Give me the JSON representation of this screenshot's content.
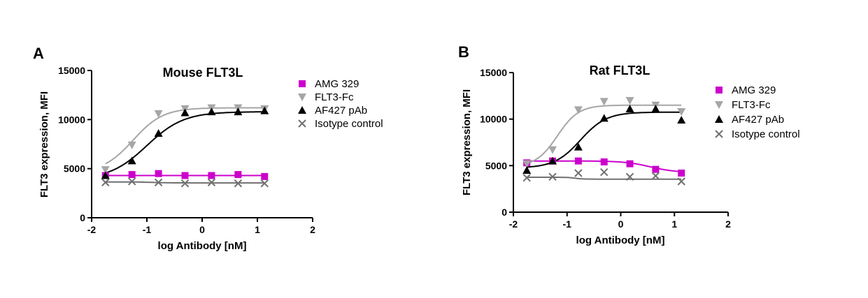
{
  "chart_data": [
    {
      "panel": "A",
      "type": "scatter",
      "title": "Mouse FLT3L",
      "xlabel": "log Antibody [nM]",
      "ylabel": "FLT3 expression, MFI",
      "xlim": [
        -2,
        2
      ],
      "ylim": [
        0,
        15000
      ],
      "xticks": [
        "-2",
        "-1",
        "0",
        "1",
        "2"
      ],
      "yticks": [
        "0",
        "5000",
        "10000",
        "15000"
      ],
      "legend_position": "right",
      "x": [
        -1.75,
        -1.27,
        -0.79,
        -0.31,
        0.17,
        0.65,
        1.13
      ],
      "series": [
        {
          "name": "AMG 329",
          "marker": "square",
          "color": "#cc00cc",
          "values": [
            4300,
            4400,
            4500,
            4300,
            4300,
            4400,
            4200
          ]
        },
        {
          "name": "FLT3-Fc",
          "marker": "triangle-down",
          "color": "#a6a6a6",
          "values": [
            4900,
            7400,
            10600,
            11100,
            11200,
            11200,
            11100
          ]
        },
        {
          "name": "AF427 pAb",
          "marker": "triangle-up",
          "color": "#000000",
          "values": [
            4300,
            5800,
            8600,
            10700,
            10800,
            10800,
            10900
          ]
        },
        {
          "name": "Isotype control",
          "marker": "x",
          "color": "#707070",
          "values": [
            3600,
            3700,
            3600,
            3500,
            3600,
            3500,
            3500
          ]
        }
      ]
    },
    {
      "panel": "B",
      "type": "scatter",
      "title": "Rat FLT3L",
      "xlabel": "log Antibody [nM]",
      "ylabel": "FLT3 expression, MFI",
      "xlim": [
        -2,
        2
      ],
      "ylim": [
        0,
        15000
      ],
      "xticks": [
        "-2",
        "-1",
        "0",
        "1",
        "2"
      ],
      "yticks": [
        "0",
        "5000",
        "10000",
        "15000"
      ],
      "legend_position": "right",
      "x": [
        -1.75,
        -1.27,
        -0.79,
        -0.31,
        0.17,
        0.65,
        1.13
      ],
      "series": [
        {
          "name": "AMG 329",
          "marker": "square",
          "color": "#cc00cc",
          "values": [
            5300,
            5500,
            5500,
            5400,
            5200,
            4600,
            4200
          ]
        },
        {
          "name": "FLT3-Fc",
          "marker": "triangle-down",
          "color": "#a6a6a6",
          "values": [
            5200,
            6700,
            11000,
            11900,
            12000,
            11500,
            10800
          ]
        },
        {
          "name": "AF427 pAb",
          "marker": "triangle-up",
          "color": "#000000",
          "values": [
            4500,
            5500,
            7000,
            10100,
            11100,
            11100,
            9900
          ]
        },
        {
          "name": "Isotype control",
          "marker": "x",
          "color": "#707070",
          "values": [
            3700,
            3800,
            4200,
            4300,
            3800,
            3900,
            3300
          ]
        }
      ]
    }
  ]
}
